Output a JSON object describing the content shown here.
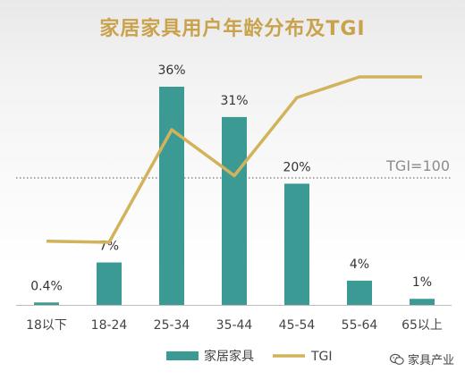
{
  "title": "家居家具用户年龄分布及TGI",
  "watermark": "家具产业",
  "colors": {
    "bar": "#3b9b94",
    "line": "#d2b35c",
    "title": "#c9a24b",
    "reference": "#8c8c8c",
    "axis": "#bdbdbd"
  },
  "chart_data": {
    "type": "bar",
    "categories": [
      "18以下",
      "18-24",
      "25-34",
      "35-44",
      "45-54",
      "55-64",
      "65以上"
    ],
    "series": [
      {
        "name": "家居家具",
        "type": "bar",
        "values": [
          0.4,
          7,
          36,
          31,
          20,
          4,
          1
        ],
        "labels": [
          "0.4%",
          "7%",
          "36%",
          "31%",
          "20%",
          "4%",
          "1%"
        ]
      },
      {
        "name": "TGI",
        "type": "line",
        "values": [
          45,
          44,
          142,
          102,
          170,
          188,
          188
        ]
      }
    ],
    "reference_line": {
      "label": "TGI=100",
      "value": 100
    },
    "legend": {
      "position": "bottom"
    },
    "grid": false
  }
}
